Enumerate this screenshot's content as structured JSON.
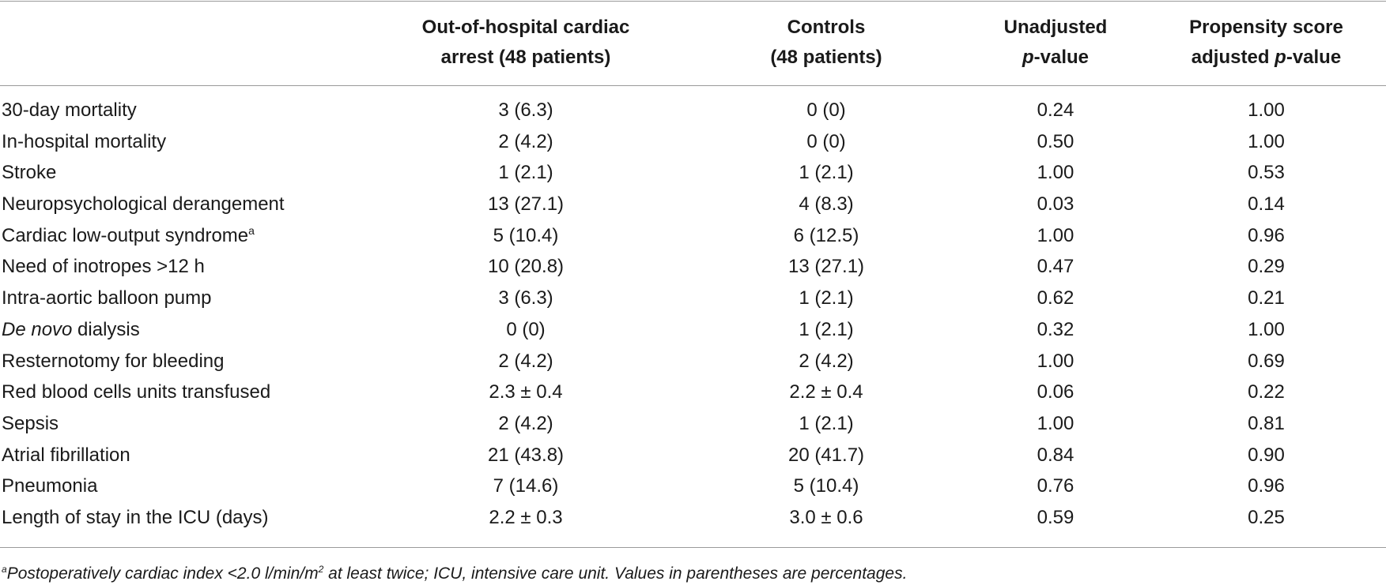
{
  "headers": {
    "col1_line1": "Out-of-hospital cardiac",
    "col1_line2": "arrest (48 patients)",
    "col2_line1": "Controls",
    "col2_line2": "(48 patients)",
    "col3_line1": "Unadjusted",
    "col3_line2_italic": "p",
    "col3_line2_rest": "-value",
    "col4_line1": "Propensity score",
    "col4_line2_prefix": "adjusted ",
    "col4_line2_italic": "p",
    "col4_line2_rest": "-value"
  },
  "rows": [
    {
      "label": "30-day mortality",
      "ohca": "3 (6.3)",
      "controls": "0 (0)",
      "unadjusted": "0.24",
      "adjusted": "1.00"
    },
    {
      "label": "In-hospital mortality",
      "ohca": "2 (4.2)",
      "controls": "0 (0)",
      "unadjusted": "0.50",
      "adjusted": "1.00"
    },
    {
      "label": "Stroke",
      "ohca": "1 (2.1)",
      "controls": "1 (2.1)",
      "unadjusted": "1.00",
      "adjusted": "0.53"
    },
    {
      "label": "Neuropsychological derangement",
      "ohca": "13 (27.1)",
      "controls": "4 (8.3)",
      "unadjusted": "0.03",
      "adjusted": "0.14"
    },
    {
      "label": "Cardiac low-output syndrome",
      "label_sup": "a",
      "ohca": "5 (10.4)",
      "controls": "6 (12.5)",
      "unadjusted": "1.00",
      "adjusted": "0.96"
    },
    {
      "label": "Need of inotropes >12 h",
      "ohca": "10 (20.8)",
      "controls": "13 (27.1)",
      "unadjusted": "0.47",
      "adjusted": "0.29"
    },
    {
      "label": "Intra-aortic balloon pump",
      "ohca": "3 (6.3)",
      "controls": "1 (2.1)",
      "unadjusted": "0.62",
      "adjusted": "0.21"
    },
    {
      "label_italic": "De novo",
      "label": " dialysis",
      "ohca": "0 (0)",
      "controls": "1 (2.1)",
      "unadjusted": "0.32",
      "adjusted": "1.00"
    },
    {
      "label": "Resternotomy for bleeding",
      "ohca": "2 (4.2)",
      "controls": "2 (4.2)",
      "unadjusted": "1.00",
      "adjusted": "0.69"
    },
    {
      "label": "Red blood cells units transfused",
      "ohca": "2.3 ± 0.4",
      "controls": "2.2 ± 0.4",
      "unadjusted": "0.06",
      "adjusted": "0.22"
    },
    {
      "label": "Sepsis",
      "ohca": "2 (4.2)",
      "controls": "1 (2.1)",
      "unadjusted": "1.00",
      "adjusted": "0.81"
    },
    {
      "label": "Atrial fibrillation",
      "ohca": "21 (43.8)",
      "controls": "20 (41.7)",
      "unadjusted": "0.84",
      "adjusted": "0.90"
    },
    {
      "label": "Pneumonia",
      "ohca": "7 (14.6)",
      "controls": "5 (10.4)",
      "unadjusted": "0.76",
      "adjusted": "0.96"
    },
    {
      "label": "Length of stay in the ICU (days)",
      "ohca": "2.2 ± 0.3",
      "controls": "3.0 ± 0.6",
      "unadjusted": "0.59",
      "adjusted": "0.25"
    }
  ],
  "footnote": {
    "marker": "a",
    "text_part1": "Postoperatively cardiac index <2.0 l/min/m",
    "sup": "2",
    "text_part2": " at least twice; ICU, intensive care unit. Values in parentheses are percentages."
  }
}
